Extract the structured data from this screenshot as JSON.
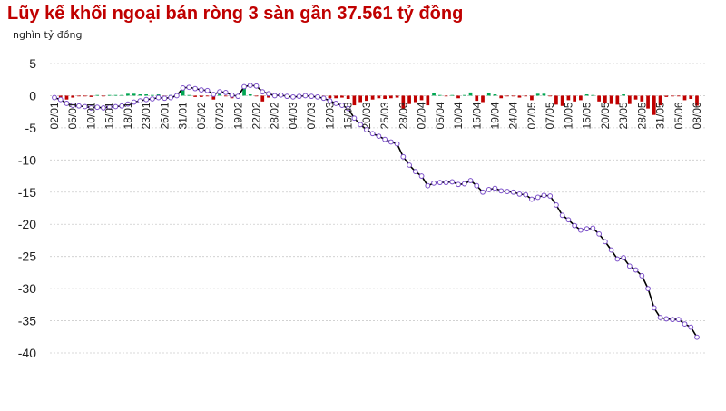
{
  "title": "Lũy kế khối ngoại bán ròng 3 sàn gần 37.561 tỷ đồng",
  "unit_label": "nghìn tỷ đồng",
  "colors": {
    "title": "#c00000",
    "sell": "#c00000",
    "buy": "#00a651",
    "line": "#000000",
    "marker": "#7b4fc9",
    "grid": "#cccccc"
  },
  "chart_data": {
    "type": "bar+line",
    "ylabel": "nghìn tỷ đồng",
    "ylim": [
      -40,
      5
    ],
    "yticks": [
      5,
      0,
      -5,
      -10,
      -15,
      -20,
      -25,
      -30,
      -35,
      -40
    ],
    "grid": true,
    "xtick_labels": [
      "02/01",
      "05/01",
      "10/01",
      "15/01",
      "18/01",
      "23/01",
      "26/01",
      "31/01",
      "05/02",
      "07/02",
      "19/02",
      "22/02",
      "28/02",
      "04/03",
      "07/03",
      "12/03",
      "15/03",
      "20/03",
      "25/03",
      "28/03",
      "02/04",
      "05/04",
      "10/04",
      "15/04",
      "19/04",
      "24/04",
      "02/05",
      "07/05",
      "10/05",
      "15/05",
      "20/05",
      "23/05",
      "28/05",
      "31/05",
      "05/06",
      "08/06"
    ],
    "series": [
      {
        "kind": "line",
        "values": [
          -0.3,
          -0.6,
          -1.2,
          -1.5,
          -1.6,
          -1.7,
          -1.9,
          -1.8,
          -1.9,
          -1.8,
          -1.7,
          -1.6,
          -1.3,
          -1.0,
          -0.8,
          -0.6,
          -0.5,
          -0.3,
          -0.4,
          -0.3,
          0.0,
          1.2,
          1.3,
          1.1,
          0.9,
          0.8,
          0.2,
          0.6,
          0.5,
          0.1,
          -0.1,
          1.4,
          1.6,
          1.5,
          0.6,
          0.3,
          0.0,
          0.1,
          -0.1,
          -0.2,
          -0.1,
          0.0,
          -0.1,
          -0.2,
          -0.4,
          -0.8,
          -1.2,
          -1.5,
          -2.0,
          -3.5,
          -4.5,
          -5.3,
          -5.9,
          -6.3,
          -6.8,
          -7.2,
          -7.5,
          -9.5,
          -10.8,
          -11.8,
          -12.5,
          -14.0,
          -13.6,
          -13.5,
          -13.5,
          -13.4,
          -13.8,
          -13.7,
          -13.2,
          -14.0,
          -15.0,
          -14.6,
          -14.4,
          -14.8,
          -14.9,
          -15.0,
          -15.3,
          -15.4,
          -16.1,
          -15.8,
          -15.5,
          -15.6,
          -17.0,
          -18.6,
          -19.3,
          -20.2,
          -20.9,
          -20.7,
          -20.6,
          -21.5,
          -22.7,
          -24.0,
          -25.4,
          -25.2,
          -26.5,
          -27.1,
          -28.0,
          -30.0,
          -33.0,
          -34.5,
          -34.7,
          -34.8,
          -34.8,
          -35.5,
          -36.0,
          -37.561
        ]
      },
      {
        "kind": "bar",
        "values": [
          -0.3,
          -0.3,
          -0.6,
          -0.3,
          -0.1,
          -0.1,
          -0.2,
          0.1,
          -0.1,
          0.1,
          0.1,
          0.1,
          0.3,
          0.3,
          0.2,
          0.2,
          0.1,
          0.2,
          -0.1,
          0.1,
          0.3,
          1.2,
          0.1,
          -0.2,
          -0.2,
          -0.1,
          -0.6,
          0.4,
          -0.1,
          -0.4,
          -0.2,
          1.5,
          0.2,
          -0.1,
          -0.9,
          -0.3,
          -0.3,
          0.1,
          -0.2,
          -0.1,
          0.1,
          0.1,
          -0.1,
          -0.1,
          -0.2,
          -0.4,
          -0.4,
          -0.3,
          -0.5,
          -1.5,
          -1.0,
          -0.8,
          -0.6,
          -0.4,
          -0.5,
          -0.4,
          -0.3,
          -2.0,
          -1.3,
          -1.0,
          -0.7,
          -1.5,
          0.4,
          0.1,
          -0.1,
          0.1,
          -0.4,
          0.1,
          0.5,
          -0.8,
          -1.0,
          0.4,
          0.2,
          -0.4,
          -0.1,
          -0.1,
          -0.3,
          -0.1,
          -0.7,
          0.3,
          0.3,
          -0.1,
          -1.4,
          -1.6,
          -0.7,
          -0.9,
          -0.7,
          0.2,
          0.1,
          -0.9,
          -1.2,
          -1.3,
          -1.4,
          0.2,
          -1.3,
          -0.6,
          -0.9,
          -2.0,
          -3.0,
          -1.5,
          -0.2,
          -0.1,
          -0.1,
          -0.7,
          -0.5,
          -1.561
        ]
      }
    ]
  }
}
